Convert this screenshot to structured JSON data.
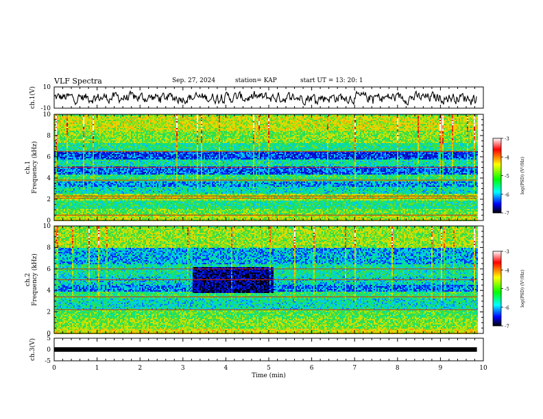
{
  "header": {
    "title": "VLF Spectra",
    "date": "Sep. 27, 2024",
    "station": "station= KAP",
    "start": "start  UT  =   13: 20: 1"
  },
  "colorbar": {
    "label": "log(PSD) (V²/Hz)",
    "ticks": [
      "-3",
      "-4",
      "-5",
      "-6",
      "-7"
    ],
    "colors": [
      "#ffffff",
      "#ff0000",
      "#ffff00",
      "#00ff00",
      "#00ffff",
      "#0000ff",
      "#000000"
    ]
  },
  "chart_data": [
    {
      "type": "line",
      "name": "ch1-waveform",
      "ylabel": "ch.1(V)",
      "ylim": [
        -10,
        10
      ],
      "y_ticks": [
        "10",
        "-10"
      ],
      "xlim": [
        0,
        10
      ],
      "x_end": 9.85,
      "baseline": 0,
      "amplitude_range": [
        -7,
        6
      ],
      "grid": false
    },
    {
      "type": "heatmap",
      "name": "ch1-spectrogram",
      "ylabel": "ch.1 Frequency (kHz)",
      "ylim": [
        0,
        10
      ],
      "y_ticks": [
        "0",
        "2",
        "4",
        "6",
        "8",
        "10"
      ],
      "xlim": [
        0,
        10
      ],
      "x_end": 9.85,
      "value_range": [
        -7,
        -3
      ],
      "bands": [
        {
          "fmin": 0.0,
          "fmax": 0.5,
          "level": -4.6
        },
        {
          "fmin": 0.5,
          "fmax": 1.2,
          "level": -4.9
        },
        {
          "fmin": 1.2,
          "fmax": 2.0,
          "level": -5.3
        },
        {
          "fmin": 2.0,
          "fmax": 2.6,
          "level": -4.7
        },
        {
          "fmin": 2.6,
          "fmax": 3.2,
          "level": -5.5
        },
        {
          "fmin": 3.2,
          "fmax": 3.8,
          "level": -5.9
        },
        {
          "fmin": 3.8,
          "fmax": 4.4,
          "level": -5.2
        },
        {
          "fmin": 4.4,
          "fmax": 5.2,
          "level": -6.1
        },
        {
          "fmin": 5.2,
          "fmax": 5.8,
          "level": -5.4
        },
        {
          "fmin": 5.8,
          "fmax": 6.6,
          "level": -6.2
        },
        {
          "fmin": 6.6,
          "fmax": 7.4,
          "level": -5.3
        },
        {
          "fmin": 7.4,
          "fmax": 8.5,
          "level": -4.8
        },
        {
          "fmin": 8.5,
          "fmax": 10.0,
          "level": -4.5
        }
      ],
      "lines_khz": [
        0.5,
        2.1,
        2.3,
        3.8,
        5.0,
        6.5
      ]
    },
    {
      "type": "heatmap",
      "name": "ch2-spectrogram",
      "ylabel": "ch.2 Frequency (kHz)",
      "ylim": [
        0,
        10
      ],
      "y_ticks": [
        "0",
        "2",
        "4",
        "6",
        "8",
        "10"
      ],
      "xlim": [
        0,
        10
      ],
      "x_end": 9.85,
      "value_range": [
        -7,
        -3
      ],
      "bands": [
        {
          "fmin": 0.0,
          "fmax": 0.5,
          "level": -4.4
        },
        {
          "fmin": 0.5,
          "fmax": 1.5,
          "level": -4.8
        },
        {
          "fmin": 1.5,
          "fmax": 2.3,
          "level": -5.0
        },
        {
          "fmin": 2.3,
          "fmax": 3.3,
          "level": -5.5
        },
        {
          "fmin": 3.3,
          "fmax": 4.0,
          "level": -5.2
        },
        {
          "fmin": 4.0,
          "fmax": 4.6,
          "level": -6.0
        },
        {
          "fmin": 4.6,
          "fmax": 5.4,
          "level": -5.6
        },
        {
          "fmin": 5.4,
          "fmax": 6.5,
          "level": -5.4
        },
        {
          "fmin": 6.5,
          "fmax": 8.0,
          "level": -5.8
        },
        {
          "fmin": 8.0,
          "fmax": 10.0,
          "level": -4.7
        }
      ],
      "quiet_region": {
        "t0": 3.2,
        "t1": 5.1,
        "fmin": 3.8,
        "fmax": 6.2,
        "level": -6.7
      },
      "lines_khz": [
        2.2,
        3.4,
        5.0,
        6.0
      ]
    },
    {
      "type": "line",
      "name": "ch3-waveform",
      "ylabel": "ch.3(V)",
      "ylim": [
        -5,
        5
      ],
      "y_ticks": [
        "5",
        "0",
        "-5"
      ],
      "xlim": [
        0,
        10
      ],
      "x_end": 9.85,
      "level_range": [
        -1,
        1
      ],
      "xlabel": "Time  (min)",
      "x_ticks": [
        "0",
        "1",
        "2",
        "3",
        "4",
        "5",
        "6",
        "7",
        "8",
        "9",
        "10"
      ]
    }
  ]
}
